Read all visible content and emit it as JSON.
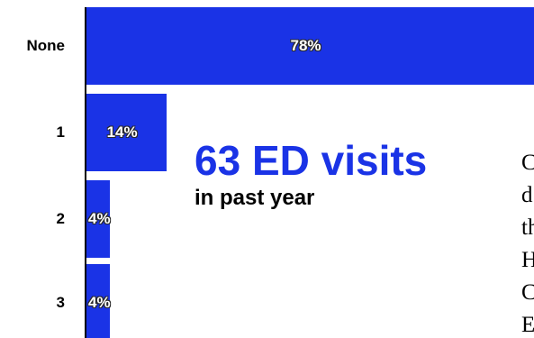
{
  "chart_data": {
    "type": "bar",
    "orientation": "horizontal",
    "categories": [
      "None",
      "1",
      "2",
      "3"
    ],
    "values": [
      78,
      14,
      4,
      4
    ],
    "data_labels": [
      "78%",
      "14%",
      "4%",
      "4%"
    ],
    "unit": "%",
    "xlim": [
      0,
      78
    ],
    "bar_color": "#1a33e6",
    "grid": false,
    "title": "",
    "xlabel": "",
    "ylabel": ""
  },
  "annotation": {
    "headline": "63 ED visits",
    "subhead": "in past year",
    "headline_color": "#1a33e6"
  },
  "side_text_lines": [
    "C",
    "d",
    "th",
    "H",
    "C",
    "E"
  ]
}
